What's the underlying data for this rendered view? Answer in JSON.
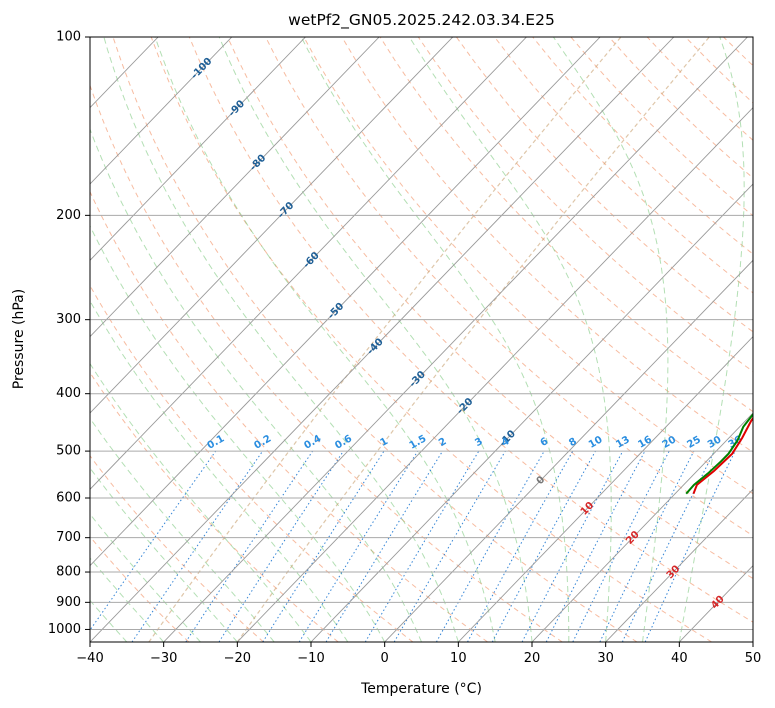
{
  "chart_data": {
    "type": "line",
    "title": "wetPf2_GN05.2025.242.03.34.E25",
    "xlabel": "Temperature (°C)",
    "ylabel": "Pressure (hPa)",
    "xlim": [
      -40,
      50
    ],
    "ylim": [
      1050,
      100
    ],
    "x_ticks": [
      "−40",
      "−30",
      "−20",
      "−10",
      "0",
      "10",
      "20",
      "30",
      "40",
      "50"
    ],
    "y_ticks": [
      "100",
      "200",
      "300",
      "400",
      "500",
      "600",
      "700",
      "800",
      "900",
      "1000"
    ],
    "isotherm_labels": [
      "-100",
      "-90",
      "-80",
      "-70",
      "-60",
      "-50",
      "-40",
      "-30",
      "-20",
      "-10",
      "0",
      "10",
      "20",
      "30",
      "40"
    ],
    "mixing_ratio_labels": [
      "0.1",
      "0.2",
      "0.4",
      "0.6",
      "1",
      "1.5",
      "2",
      "3",
      "4",
      "6",
      "8",
      "10",
      "13",
      "16",
      "20",
      "25",
      "30",
      "36"
    ],
    "series": [
      {
        "name": "Temperature",
        "color": "#e00000",
        "points": [
          [
            22.5,
            590
          ],
          [
            21.8,
            570
          ],
          [
            22.3,
            540
          ],
          [
            22.5,
            505
          ],
          [
            21.8,
            475
          ],
          [
            20.8,
            445
          ],
          [
            20.2,
            420
          ],
          [
            19.8,
            405
          ],
          [
            18.0,
            390
          ],
          [
            17.2,
            372
          ],
          [
            17.2,
            358
          ],
          [
            18.0,
            340
          ],
          [
            16.5,
            310
          ],
          [
            14.2,
            285
          ],
          [
            11.5,
            265
          ],
          [
            8.5,
            240
          ],
          [
            5.5,
            217
          ],
          [
            4.0,
            200
          ],
          [
            2.5,
            186
          ],
          [
            1.2,
            175
          ],
          [
            2.2,
            160
          ],
          [
            2.5,
            148
          ],
          [
            3.5,
            138
          ],
          [
            4.0,
            130
          ],
          [
            4.5,
            120
          ],
          [
            4.8,
            112
          ],
          [
            4.6,
            106
          ],
          [
            5.2,
            100
          ]
        ]
      },
      {
        "name": "Dewpoint",
        "color": "#008000",
        "points": [
          [
            21.5,
            590
          ],
          [
            21.4,
            570
          ],
          [
            21.8,
            545
          ],
          [
            22.0,
            520
          ],
          [
            22.0,
            505
          ],
          [
            21.5,
            480
          ],
          [
            20.5,
            455
          ],
          [
            20.2,
            435
          ],
          [
            19.8,
            405
          ],
          [
            18.3,
            392
          ],
          [
            17.0,
            380
          ],
          [
            17.0,
            368
          ],
          [
            18.0,
            352
          ],
          [
            18.2,
            338
          ],
          [
            16.5,
            320
          ],
          [
            15.5,
            300
          ],
          [
            12.0,
            275
          ],
          [
            7.0,
            255
          ],
          [
            5.5,
            235
          ],
          [
            5.0,
            212
          ],
          [
            5.2,
            198
          ],
          [
            4.0,
            186
          ],
          [
            1.5,
            175
          ],
          [
            1.2,
            160
          ],
          [
            1.5,
            145
          ],
          [
            0.5,
            132
          ],
          [
            0.0,
            122
          ],
          [
            0.2,
            112
          ],
          [
            1.2,
            106
          ],
          [
            2.8,
            100
          ]
        ]
      }
    ]
  }
}
